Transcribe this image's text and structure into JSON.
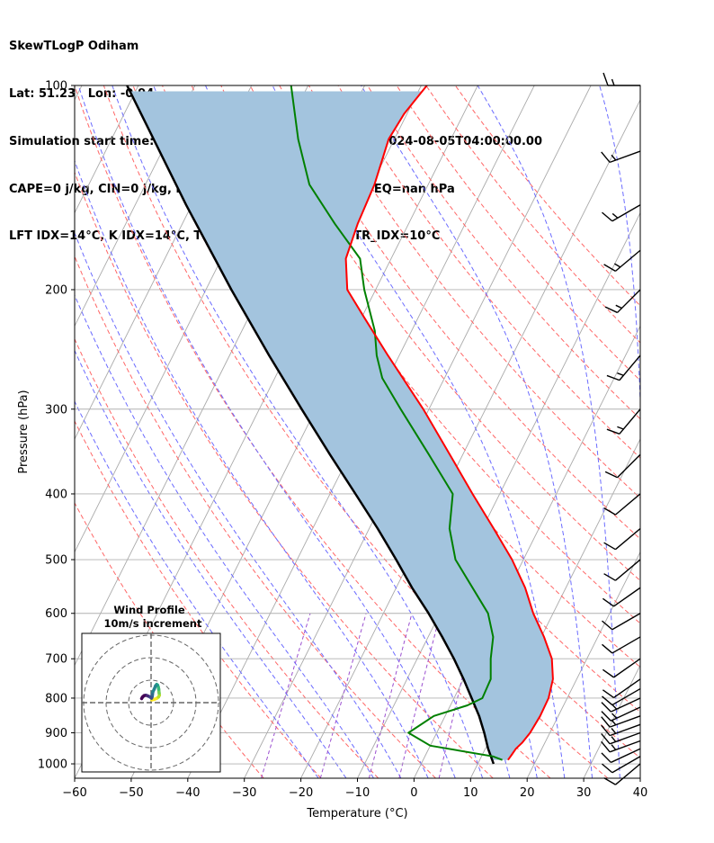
{
  "header": {
    "line1": "SkewTLogP Odiham",
    "line2": "Lat: 51.23   Lon: -0.94",
    "line3": "Simulation start time: 2024-08-04_00:00:00, Valid time: 2024-08-05T04:00:00.00",
    "line4": "CAPE=0 j/kg, CIN=0 j/kg, LCL=1001 hPa, LFC=nan hPa, EQ=nan hPa",
    "line5": "LFT IDX=14°C, K IDX=14°C, TOTAL TOTS=33°C, SHWTR_IDX=10°C"
  },
  "colors": {
    "temperature": "#ff0000",
    "dewpoint": "#008000",
    "parcel": "#000000",
    "cape_fill": "#a3c4de",
    "dry_adiabat": "#ff6666",
    "moist_adiabat": "#6b6bff",
    "mixing_ratio": "#9b4fd0",
    "isotherm": "#aaaaaa"
  },
  "chart_data": [
    {
      "type": "line",
      "title": "",
      "xlabel": "Temperature (°C)",
      "ylabel": "Pressure (hPa)",
      "xlim": [
        -60,
        40
      ],
      "ylim": [
        1050,
        100
      ],
      "yscale": "log",
      "skew_deg_per_decade": 60,
      "xticks": [
        "−60",
        "−50",
        "−40",
        "−30",
        "−20",
        "−10",
        "0",
        "10",
        "20",
        "30",
        "40"
      ],
      "yticks": [
        "100",
        "200",
        "300",
        "400",
        "500",
        "600",
        "700",
        "800",
        "900",
        "1000"
      ],
      "grid": true,
      "series": [
        {
          "key": "temperature",
          "color": "#ff0000",
          "p": [
            987,
            970,
            950,
            930,
            900,
            850,
            800,
            750,
            700,
            650,
            600,
            550,
            500,
            450,
            400,
            350,
            300,
            250,
            220,
            200,
            180,
            160,
            140,
            120,
            110,
            100
          ],
          "t": [
            15.0,
            15.2,
            15.4,
            16.0,
            16.5,
            16.8,
            16.7,
            15.8,
            13.8,
            10.5,
            6.5,
            2.8,
            -2.0,
            -8.0,
            -14.8,
            -22.3,
            -31.0,
            -42.0,
            -49.5,
            -55.0,
            -58.0,
            -59.0,
            -59.5,
            -61.0,
            -60.5,
            -59.0
          ]
        },
        {
          "key": "dewpoint",
          "color": "#008000",
          "p": [
            987,
            975,
            940,
            900,
            850,
            820,
            800,
            750,
            700,
            650,
            600,
            550,
            500,
            450,
            400,
            350,
            300,
            270,
            250,
            230,
            200,
            180,
            160,
            140,
            120,
            100
          ],
          "t": [
            14.0,
            12.0,
            0.0,
            -5.0,
            -2.0,
            3.0,
            5.0,
            4.8,
            3.0,
            1.5,
            -1.5,
            -6.5,
            -12.0,
            -15.8,
            -18.3,
            -26.0,
            -35.0,
            -41.0,
            -44.0,
            -46.5,
            -52.0,
            -55.5,
            -63.0,
            -71.0,
            -77.0,
            -83.0
          ]
        },
        {
          "key": "parcel",
          "color": "#000000",
          "p": [
            1000,
            950,
            900,
            850,
            800,
            750,
            700,
            650,
            600,
            550,
            500,
            450,
            400,
            350,
            300,
            250,
            200,
            150,
            100
          ],
          "t": [
            12.8,
            10.5,
            8.4,
            6.0,
            3.1,
            0.0,
            -3.5,
            -7.5,
            -12.0,
            -17.2,
            -22.5,
            -28.5,
            -35.5,
            -43.5,
            -52.5,
            -63.0,
            -75.5,
            -91.0,
            -112.0
          ]
        }
      ]
    },
    {
      "type": "line",
      "title": "Wind Profile",
      "subtitle": "10m/s increment",
      "hodograph_u": [
        0.3,
        1.5,
        2.5,
        3.3,
        3.7,
        3.6,
        3.5,
        3.4,
        3.2,
        2.9,
        2.5,
        2.0,
        1.4,
        0.8,
        0.6,
        0.5,
        0.2,
        -0.6,
        -1.5,
        -2.3,
        -3.1,
        -3.8,
        -4.2
      ],
      "hodograph_v": [
        1.2,
        1.5,
        1.9,
        2.5,
        3.3,
        4.2,
        5.1,
        6.0,
        7.0,
        7.8,
        8.1,
        7.5,
        6.0,
        4.8,
        3.6,
        2.7,
        2.0,
        2.6,
        3.0,
        3.3,
        3.1,
        2.5,
        1.8
      ],
      "rings_ms": [
        10,
        20,
        30
      ]
    }
  ],
  "wind_barbs": {
    "p": [
      1000,
      975,
      950,
      925,
      900,
      875,
      850,
      825,
      800,
      775,
      750,
      700,
      650,
      600,
      550,
      500,
      450,
      400,
      350,
      300,
      250,
      200,
      175,
      150,
      125,
      100
    ],
    "speed_kt": [
      10,
      10,
      12,
      14,
      16,
      16,
      15,
      15,
      14,
      12,
      10,
      10,
      10,
      10,
      10,
      10,
      10,
      10,
      12,
      15,
      15,
      15,
      16,
      16,
      16,
      16
    ],
    "dir_deg": [
      230,
      240,
      245,
      250,
      250,
      250,
      250,
      245,
      245,
      240,
      235,
      235,
      240,
      240,
      235,
      230,
      230,
      230,
      225,
      220,
      220,
      225,
      230,
      240,
      250,
      270
    ]
  }
}
